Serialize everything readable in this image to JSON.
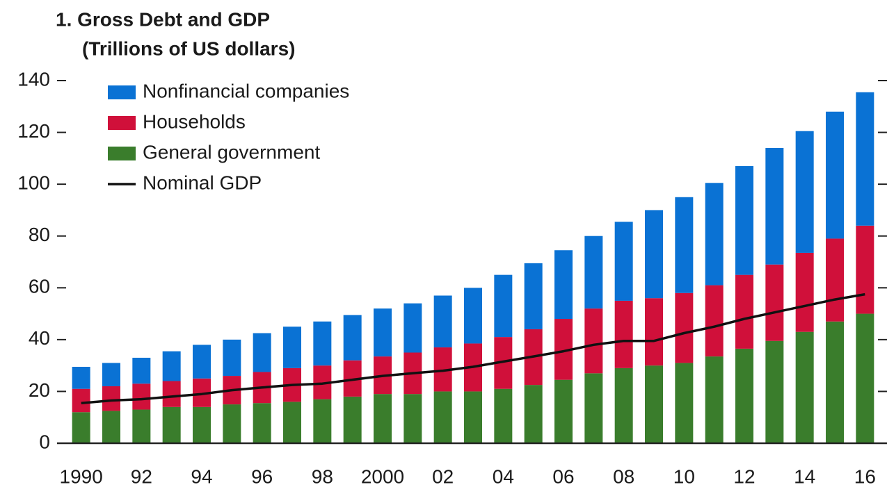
{
  "chart_data": {
    "type": "bar",
    "stacked": true,
    "title": "1. Gross Debt and GDP",
    "subtitle": "(Trillions of US dollars)",
    "categories": [
      "1990",
      null,
      "92",
      null,
      "94",
      null,
      "96",
      null,
      "98",
      null,
      "2000",
      null,
      "02",
      null,
      "04",
      null,
      "06",
      null,
      "08",
      null,
      "10",
      null,
      "12",
      null,
      "14",
      null,
      "16"
    ],
    "ylim": [
      0,
      140
    ],
    "yticks": [
      0,
      20,
      40,
      60,
      80,
      100,
      120,
      140
    ],
    "legend": "upper left",
    "grid": false,
    "series": [
      {
        "name": "General government",
        "type": "bar",
        "color": "#3a7d2c",
        "values": [
          12,
          12.5,
          13,
          14,
          14,
          15,
          15.5,
          16,
          17,
          18,
          19,
          19,
          20,
          20,
          21,
          22.5,
          24.5,
          27,
          29,
          30,
          31,
          33.5,
          36.5,
          39.5,
          43,
          47,
          50
        ]
      },
      {
        "name": "Households",
        "type": "bar",
        "color": "#d0103a",
        "values": [
          9,
          9.5,
          10,
          10,
          11,
          11,
          12,
          13,
          13,
          14,
          14.5,
          16,
          17,
          18.5,
          20,
          21.5,
          23.5,
          25,
          26,
          26,
          27,
          27.5,
          28.5,
          29.5,
          30.5,
          32,
          34
        ]
      },
      {
        "name": "Nonfinancial companies",
        "type": "bar",
        "color": "#0a72d4",
        "values": [
          8.5,
          9,
          10,
          11.5,
          13,
          14,
          15,
          16,
          17,
          17.5,
          18.5,
          19,
          20,
          21.5,
          24,
          25.5,
          26.5,
          28,
          30.5,
          34,
          37,
          39.5,
          42,
          45,
          47,
          49,
          51.5
        ]
      },
      {
        "name": "Nominal GDP",
        "type": "line",
        "color": "#111111",
        "values": [
          15.5,
          16.5,
          17,
          18,
          19,
          20.5,
          21.5,
          22.5,
          23,
          24.5,
          26,
          27,
          28,
          29.5,
          31.5,
          33.5,
          35.5,
          38,
          39.5,
          39.5,
          42.5,
          45,
          48,
          50.5,
          53,
          55.5,
          57.5
        ]
      }
    ]
  }
}
